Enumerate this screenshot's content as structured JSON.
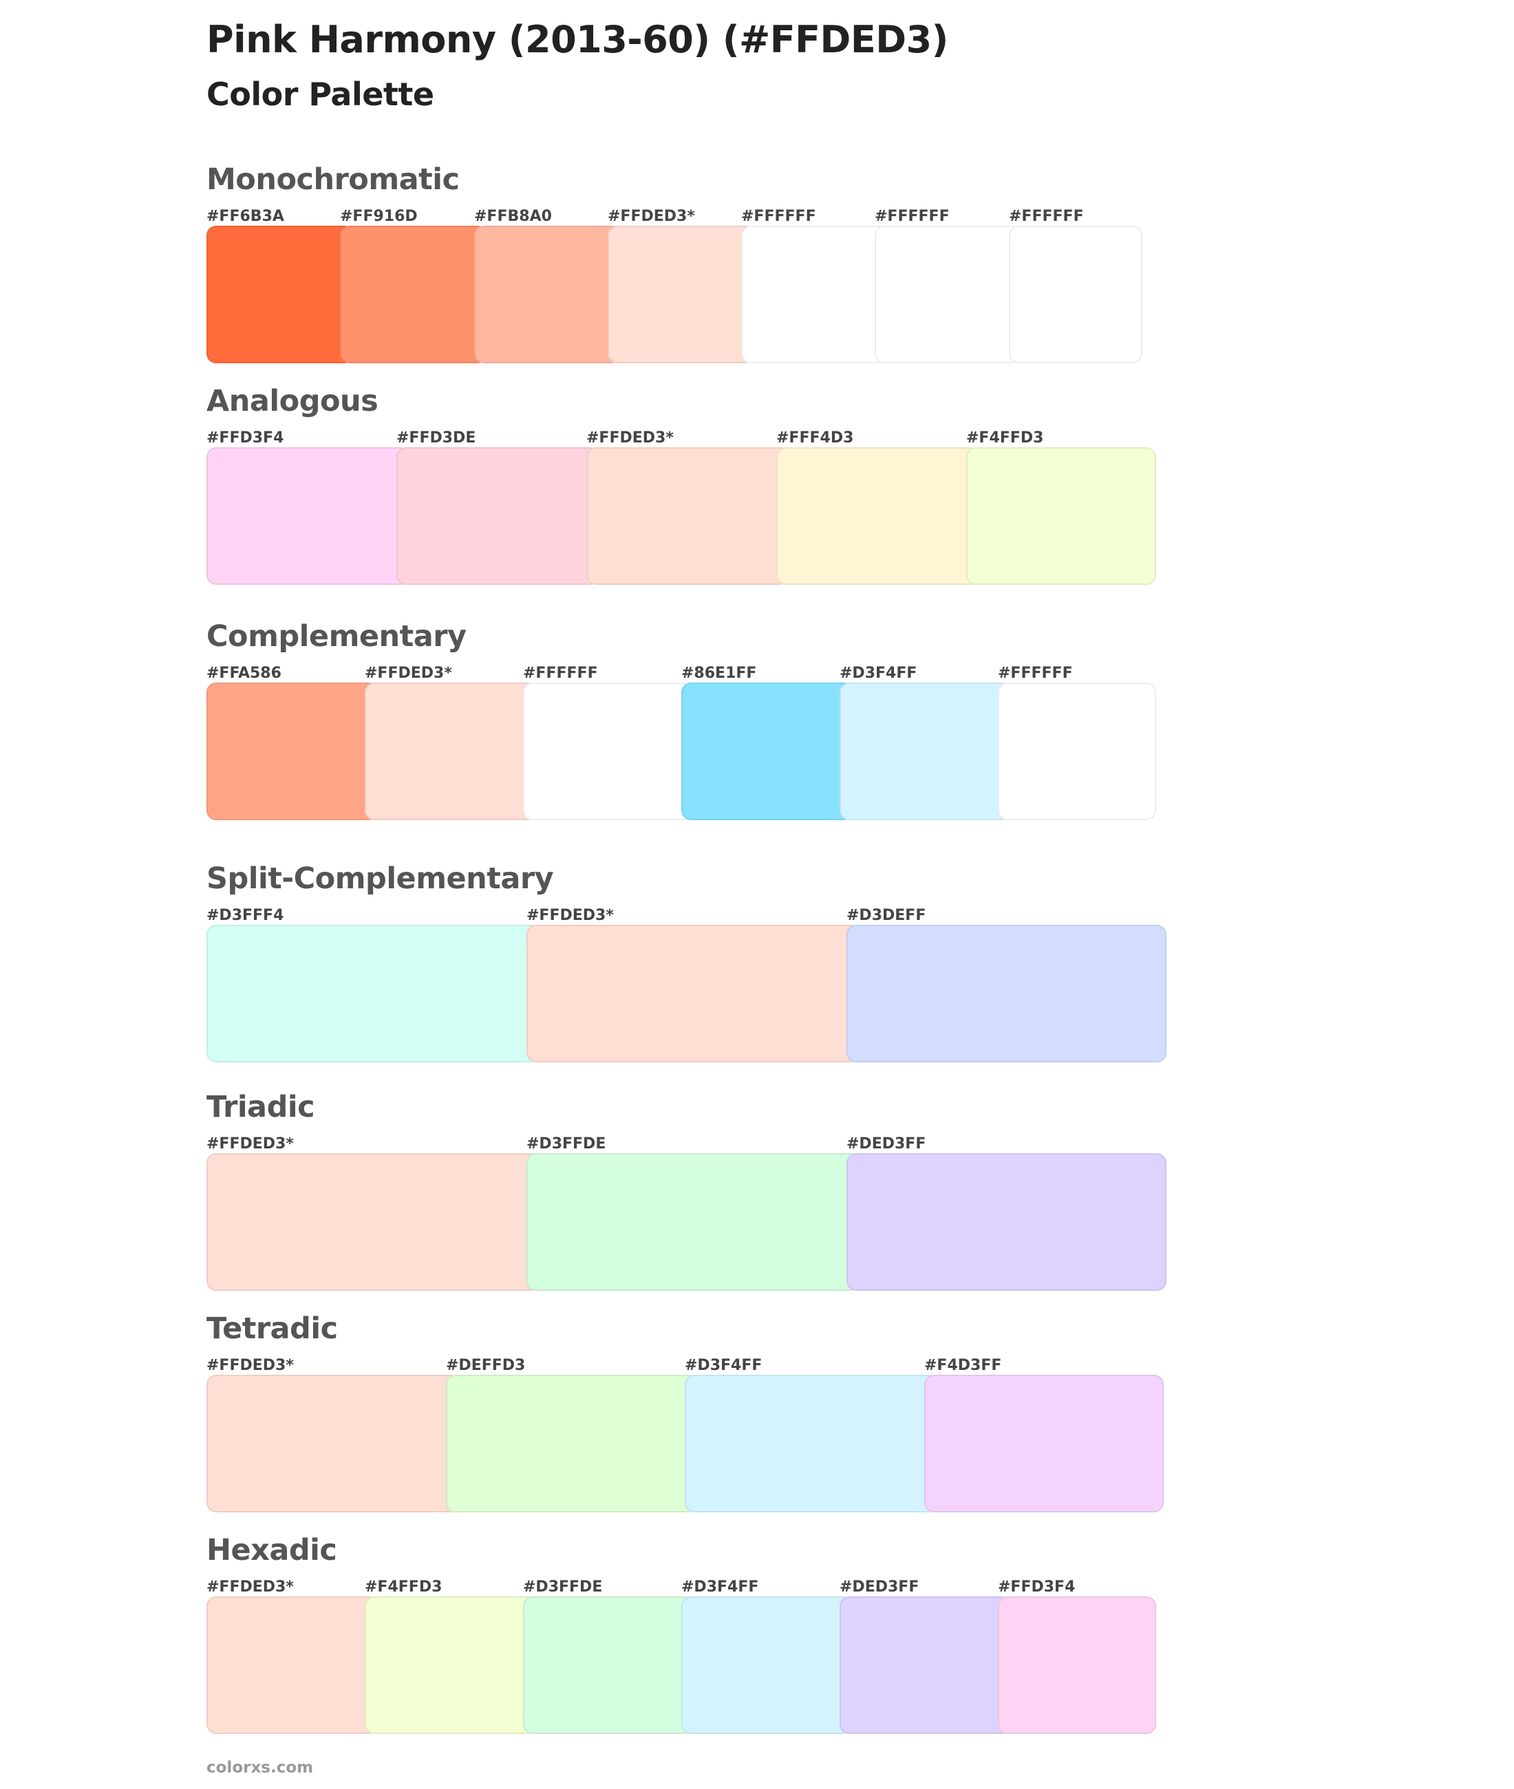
{
  "header": {
    "title": "Pink Harmony (2013-60) (#FFDED3)",
    "subtitle": "Color Palette"
  },
  "sections": [
    {
      "id": "monochromatic",
      "title": "Monochromatic",
      "swatches": [
        {
          "label": "#FF6B3A",
          "color": "#FF6B3A"
        },
        {
          "label": "#FF916D",
          "color": "#FF916D"
        },
        {
          "label": "#FFB8A0",
          "color": "#FFB8A0"
        },
        {
          "label": "#FFDED3*",
          "color": "#FFDED3"
        },
        {
          "label": "#FFFFFF",
          "color": "#FFFFFF"
        },
        {
          "label": "#FFFFFF",
          "color": "#FFFFFF"
        },
        {
          "label": "#FFFFFF",
          "color": "#FFFFFF"
        }
      ]
    },
    {
      "id": "analogous",
      "title": "Analogous",
      "swatches": [
        {
          "label": "#FFD3F4",
          "color": "#FFD3F4"
        },
        {
          "label": "#FFD3DE",
          "color": "#FFD3DE"
        },
        {
          "label": "#FFDED3*",
          "color": "#FFDED3"
        },
        {
          "label": "#FFF4D3",
          "color": "#FFF4D3"
        },
        {
          "label": "#F4FFD3",
          "color": "#F4FFD3"
        }
      ]
    },
    {
      "id": "complementary",
      "title": "Complementary",
      "swatches": [
        {
          "label": "#FFA586",
          "color": "#FFA586"
        },
        {
          "label": "#FFDED3*",
          "color": "#FFDED3"
        },
        {
          "label": "#FFFFFF",
          "color": "#FFFFFF"
        },
        {
          "label": "#86E1FF",
          "color": "#86E1FF"
        },
        {
          "label": "#D3F4FF",
          "color": "#D3F4FF"
        },
        {
          "label": "#FFFFFF",
          "color": "#FFFFFF"
        }
      ]
    },
    {
      "id": "split-complementary",
      "title": "Split-Complementary",
      "swatches": [
        {
          "label": "#D3FFF4",
          "color": "#D3FFF4"
        },
        {
          "label": "#FFDED3*",
          "color": "#FFDED3"
        },
        {
          "label": "#D3DEFF",
          "color": "#D3DEFF"
        }
      ]
    },
    {
      "id": "triadic",
      "title": "Triadic",
      "swatches": [
        {
          "label": "#FFDED3*",
          "color": "#FFDED3"
        },
        {
          "label": "#D3FFDE",
          "color": "#D3FFDE"
        },
        {
          "label": "#DED3FF",
          "color": "#DED3FF"
        }
      ]
    },
    {
      "id": "tetradic",
      "title": "Tetradic",
      "swatches": [
        {
          "label": "#FFDED3*",
          "color": "#FFDED3"
        },
        {
          "label": "#DEFFD3",
          "color": "#DEFFD3"
        },
        {
          "label": "#D3F4FF",
          "color": "#D3F4FF"
        },
        {
          "label": "#F4D3FF",
          "color": "#F4D3FF"
        }
      ]
    },
    {
      "id": "hexadic",
      "title": "Hexadic",
      "swatches": [
        {
          "label": "#FFDED3*",
          "color": "#FFDED3"
        },
        {
          "label": "#F4FFD3",
          "color": "#F4FFD3"
        },
        {
          "label": "#D3FFDE",
          "color": "#D3FFDE"
        },
        {
          "label": "#D3F4FF",
          "color": "#D3F4FF"
        },
        {
          "label": "#DED3FF",
          "color": "#DED3FF"
        },
        {
          "label": "#FFD3F4",
          "color": "#FFD3F4"
        }
      ]
    }
  ],
  "footer": {
    "site": "colorxs.com"
  }
}
